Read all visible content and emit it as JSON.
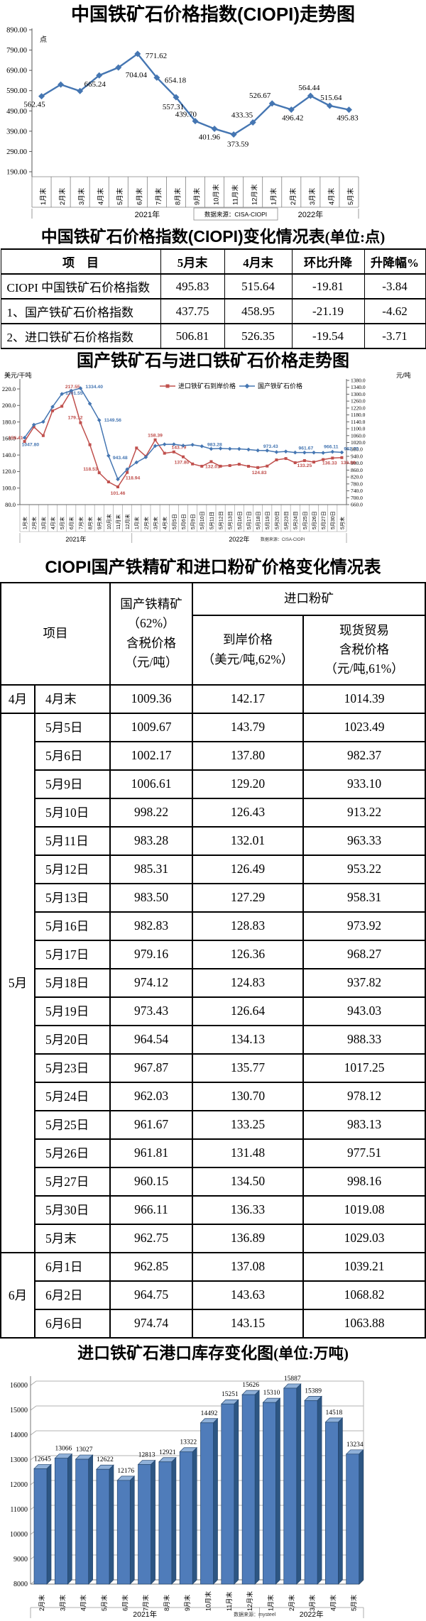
{
  "chart_data": [
    {
      "id": "ciopi_trend",
      "type": "line",
      "title": "中国铁矿石价格指数(CIOPI)走势图",
      "y_axis_unit": "点",
      "ylim": [
        190,
        890
      ],
      "ytick_step": 100,
      "line_color": "#4576b2",
      "categories": [
        "1月末",
        "2月末",
        "3月末",
        "4月末",
        "5月末",
        "6月末",
        "7月末",
        "8月末",
        "9月末",
        "10月末",
        "11月末",
        "12月末",
        "1月末",
        "2月末",
        "3月末",
        "4月末",
        "5月末"
      ],
      "values": [
        562.45,
        620,
        588,
        665.24,
        704.04,
        771.62,
        654.18,
        557.31,
        439.7,
        401.96,
        373.59,
        433.35,
        526.67,
        496.42,
        564.44,
        515.64,
        495.83
      ],
      "point_labels": [
        "562.45",
        null,
        null,
        "665.24",
        "704.04",
        "771.62",
        "654.18",
        "557.31",
        "439.70",
        "401.96",
        "373.59",
        "433.35",
        "526.67",
        "496.42",
        "564.44",
        "515.64",
        "495.83"
      ],
      "year_groups": [
        {
          "label": "2021年",
          "count": 12
        },
        {
          "label": "2022年",
          "count": 5
        }
      ],
      "source": "数据来源：CISA-CIOPI"
    },
    {
      "id": "domestic_vs_import",
      "type": "line",
      "title": "国产铁矿石与进口铁矿石价格走势图",
      "left_axis_label": "美元/干吨",
      "right_axis_label": "元/吨",
      "left_ylim": [
        80,
        220
      ],
      "left_step": 20,
      "right_ylim": [
        660,
        1380
      ],
      "right_step": 40,
      "categories": [
        "1月末",
        "2月末",
        "3月末",
        "4月末",
        "5月末",
        "6月末",
        "7月末",
        "8月末",
        "9月末",
        "10月末",
        "11月末",
        "12月末",
        "1月末",
        "2月末",
        "3月末",
        "4月末",
        "5月5日",
        "5月6日",
        "5月9日",
        "5月10日",
        "5月11日",
        "5月12日",
        "5月13日",
        "5月16日",
        "5月17日",
        "5月18日",
        "5月19日",
        "5月20日",
        "5月23日",
        "5月24日",
        "5月25日",
        "5月26日",
        "5月27日",
        "5月30日",
        "5月末"
      ],
      "series": [
        {
          "name": "进口铁矿石到岸价格",
          "axis": "left",
          "color": "#c0504d",
          "marker": "square",
          "values": [
            156.41,
            174.0,
            163.5,
            193.5,
            199.0,
            217.55,
            179.12,
            152.5,
            118.53,
            107.5,
            101.46,
            118.94,
            148.5,
            138.5,
            158.39,
            142.17,
            143.79,
            137.8,
            129.2,
            126.43,
            132.01,
            126.49,
            127.29,
            128.83,
            126.36,
            124.83,
            126.64,
            134.13,
            135.77,
            130.7,
            133.25,
            131.48,
            134.5,
            136.33,
            136.89
          ],
          "point_labels": [
            "156.41",
            null,
            null,
            null,
            null,
            "217.55",
            "179.12",
            null,
            "118.53",
            null,
            "101.46",
            "118.94",
            null,
            null,
            "158.39",
            null,
            "143.79",
            "137.80",
            null,
            null,
            "132.01",
            null,
            null,
            null,
            null,
            "124.83",
            null,
            null,
            null,
            null,
            "133.25",
            null,
            null,
            "136.33",
            "136.89"
          ]
        },
        {
          "name": "国产铁矿石价格",
          "axis": "right",
          "color": "#4576b2",
          "marker": "diamond",
          "values": [
            1047.8,
            1123,
            1140,
            1227,
            1301.55,
            1320,
            1334.4,
            1245,
            1149.56,
            943.48,
            807,
            865,
            905,
            935,
            1000,
            1009.36,
            1009.67,
            1002.17,
            1006.61,
            998.22,
            983.28,
            985.31,
            983.5,
            982.83,
            979.16,
            974.12,
            973.43,
            964.54,
            967.87,
            962.03,
            961.67,
            961.81,
            960.15,
            966.11,
            962.75
          ],
          "point_labels": [
            "1047.80",
            null,
            null,
            null,
            "1301.55",
            null,
            "1334.40",
            null,
            "1149.56",
            "943.48",
            null,
            null,
            null,
            null,
            null,
            null,
            null,
            null,
            null,
            null,
            "983.28",
            null,
            null,
            null,
            null,
            null,
            "973.43",
            null,
            null,
            null,
            "961.67",
            null,
            null,
            "966.11",
            "962.75"
          ]
        }
      ],
      "year_groups": [
        {
          "label": "2021年",
          "count": 12
        },
        {
          "label": "2022年",
          "count": 23
        }
      ],
      "source": "数据来源：CISA-CIOPI"
    },
    {
      "id": "port_inventory",
      "type": "bar",
      "title_main": "进口铁矿石港口库存变化图",
      "title_unit": "(单位:万吨)",
      "ylim": [
        8000,
        16000
      ],
      "ytick_step": 1000,
      "bar_color": "#4f7cba",
      "categories": [
        "2月末",
        "3月末",
        "4月末",
        "5月末",
        "6月末",
        "7月末",
        "8月末",
        "9月末",
        "10月末",
        "11月末",
        "12月末",
        "1月末",
        "2月末",
        "3月末",
        "4月末",
        "5月末"
      ],
      "values": [
        12645,
        13066,
        13027,
        12622,
        12176,
        12813,
        12921,
        13322,
        14492,
        15251,
        15626,
        15310,
        15887,
        15389,
        14518,
        13234
      ],
      "year_groups": [
        {
          "label": "2021年",
          "count": 11
        },
        {
          "label": "2022年",
          "count": 5
        }
      ],
      "source": "数据来源：mysteel"
    }
  ],
  "table1": {
    "title": "中国铁矿石价格指数(CIOPI)变化情况表",
    "unit": "(单位:点)",
    "headers": [
      "项　目",
      "5月末",
      "4月末",
      "环比升降",
      "升降幅%"
    ],
    "rows": [
      [
        "CIOPI 中国铁矿石价格指数",
        "495.83",
        "515.64",
        "-19.81",
        "-3.84"
      ],
      [
        "1、国产铁矿石价格指数",
        "437.75",
        "458.95",
        "-21.19",
        "-4.62"
      ],
      [
        "2、进口铁矿石价格指数",
        "506.81",
        "526.35",
        "-19.54",
        "-3.71"
      ]
    ]
  },
  "table2": {
    "title": "CIOPI国产铁精矿和进口粉矿价格变化情况表",
    "header": {
      "item": "项目",
      "domestic": "国产铁精矿\n（62%）\n含税价格\n（元/吨）",
      "import_group": "进口粉矿",
      "arrival": "到岸价格\n（美元/吨,62%）",
      "spot": "现货贸易\n含税价格\n（元/吨,61%）"
    },
    "groups": [
      {
        "month": "4月",
        "rows": [
          [
            "4月末",
            "1009.36",
            "142.17",
            "1014.39"
          ]
        ]
      },
      {
        "month": "5月",
        "rows": [
          [
            "5月5日",
            "1009.67",
            "143.79",
            "1023.49"
          ],
          [
            "5月6日",
            "1002.17",
            "137.80",
            "982.37"
          ],
          [
            "5月9日",
            "1006.61",
            "129.20",
            "933.10"
          ],
          [
            "5月10日",
            "998.22",
            "126.43",
            "913.22"
          ],
          [
            "5月11日",
            "983.28",
            "132.01",
            "963.33"
          ],
          [
            "5月12日",
            "985.31",
            "126.49",
            "953.22"
          ],
          [
            "5月13日",
            "983.50",
            "127.29",
            "958.31"
          ],
          [
            "5月16日",
            "982.83",
            "128.83",
            "973.92"
          ],
          [
            "5月17日",
            "979.16",
            "126.36",
            "968.27"
          ],
          [
            "5月18日",
            "974.12",
            "124.83",
            "937.82"
          ],
          [
            "5月19日",
            "973.43",
            "126.64",
            "943.03"
          ],
          [
            "5月20日",
            "964.54",
            "134.13",
            "988.33"
          ],
          [
            "5月23日",
            "967.87",
            "135.77",
            "1017.25"
          ],
          [
            "5月24日",
            "962.03",
            "130.70",
            "978.12"
          ],
          [
            "5月25日",
            "961.67",
            "133.25",
            "983.13"
          ],
          [
            "5月26日",
            "961.81",
            "131.48",
            "977.51"
          ],
          [
            "5月27日",
            "960.15",
            "134.50",
            "998.16"
          ],
          [
            "5月30日",
            "966.11",
            "136.33",
            "1019.08"
          ],
          [
            "5月末",
            "962.75",
            "136.89",
            "1029.03"
          ]
        ]
      },
      {
        "month": "6月",
        "rows": [
          [
            "6月1日",
            "962.85",
            "137.08",
            "1039.21"
          ],
          [
            "6月2日",
            "964.75",
            "143.63",
            "1068.82"
          ],
          [
            "6月6日",
            "974.74",
            "143.15",
            "1063.88"
          ]
        ]
      }
    ]
  }
}
